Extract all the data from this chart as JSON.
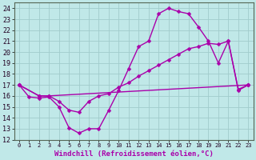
{
  "bg_color": "#c0e8e8",
  "grid_color": "#a0cccc",
  "line_color": "#aa00aa",
  "marker": "D",
  "markersize": 2.5,
  "linewidth": 1.0,
  "xlabel": "Windchill (Refroidissement éolien,°C)",
  "xlabel_fontsize": 6.5,
  "tick_fontsize": 6,
  "xlim": [
    -0.5,
    23.5
  ],
  "ylim": [
    12,
    24.5
  ],
  "yticks": [
    12,
    13,
    14,
    15,
    16,
    17,
    18,
    19,
    20,
    21,
    22,
    23,
    24
  ],
  "xticks": [
    0,
    1,
    2,
    3,
    4,
    5,
    6,
    7,
    8,
    9,
    10,
    11,
    12,
    13,
    14,
    15,
    16,
    17,
    18,
    19,
    20,
    21,
    22,
    23
  ],
  "line1_x": [
    0,
    1,
    2,
    3,
    4,
    5,
    6,
    7,
    8,
    9,
    10,
    11,
    12,
    13,
    14,
    15,
    16,
    17,
    18,
    19,
    20,
    21,
    22,
    23
  ],
  "line1_y": [
    17.0,
    15.9,
    15.8,
    15.9,
    15.0,
    13.1,
    12.6,
    13.0,
    13.0,
    14.7,
    16.5,
    18.5,
    20.5,
    21.0,
    23.5,
    24.0,
    23.7,
    23.5,
    22.3,
    21.0,
    19.0,
    21.0,
    16.5,
    17.0
  ],
  "line2_x": [
    0,
    2,
    3,
    23
  ],
  "line2_y": [
    17.0,
    16.0,
    16.0,
    17.0
  ],
  "line3_x": [
    0,
    2,
    3,
    4,
    5,
    6,
    7,
    8,
    9,
    10,
    11,
    12,
    13,
    14,
    15,
    16,
    17,
    18,
    19,
    20,
    21,
    22,
    23
  ],
  "line3_y": [
    17.0,
    16.0,
    16.0,
    15.5,
    14.7,
    14.5,
    15.5,
    16.0,
    16.2,
    16.8,
    17.2,
    17.8,
    18.3,
    18.8,
    19.3,
    19.8,
    20.3,
    20.5,
    20.8,
    20.7,
    21.0,
    16.6,
    17.0
  ]
}
